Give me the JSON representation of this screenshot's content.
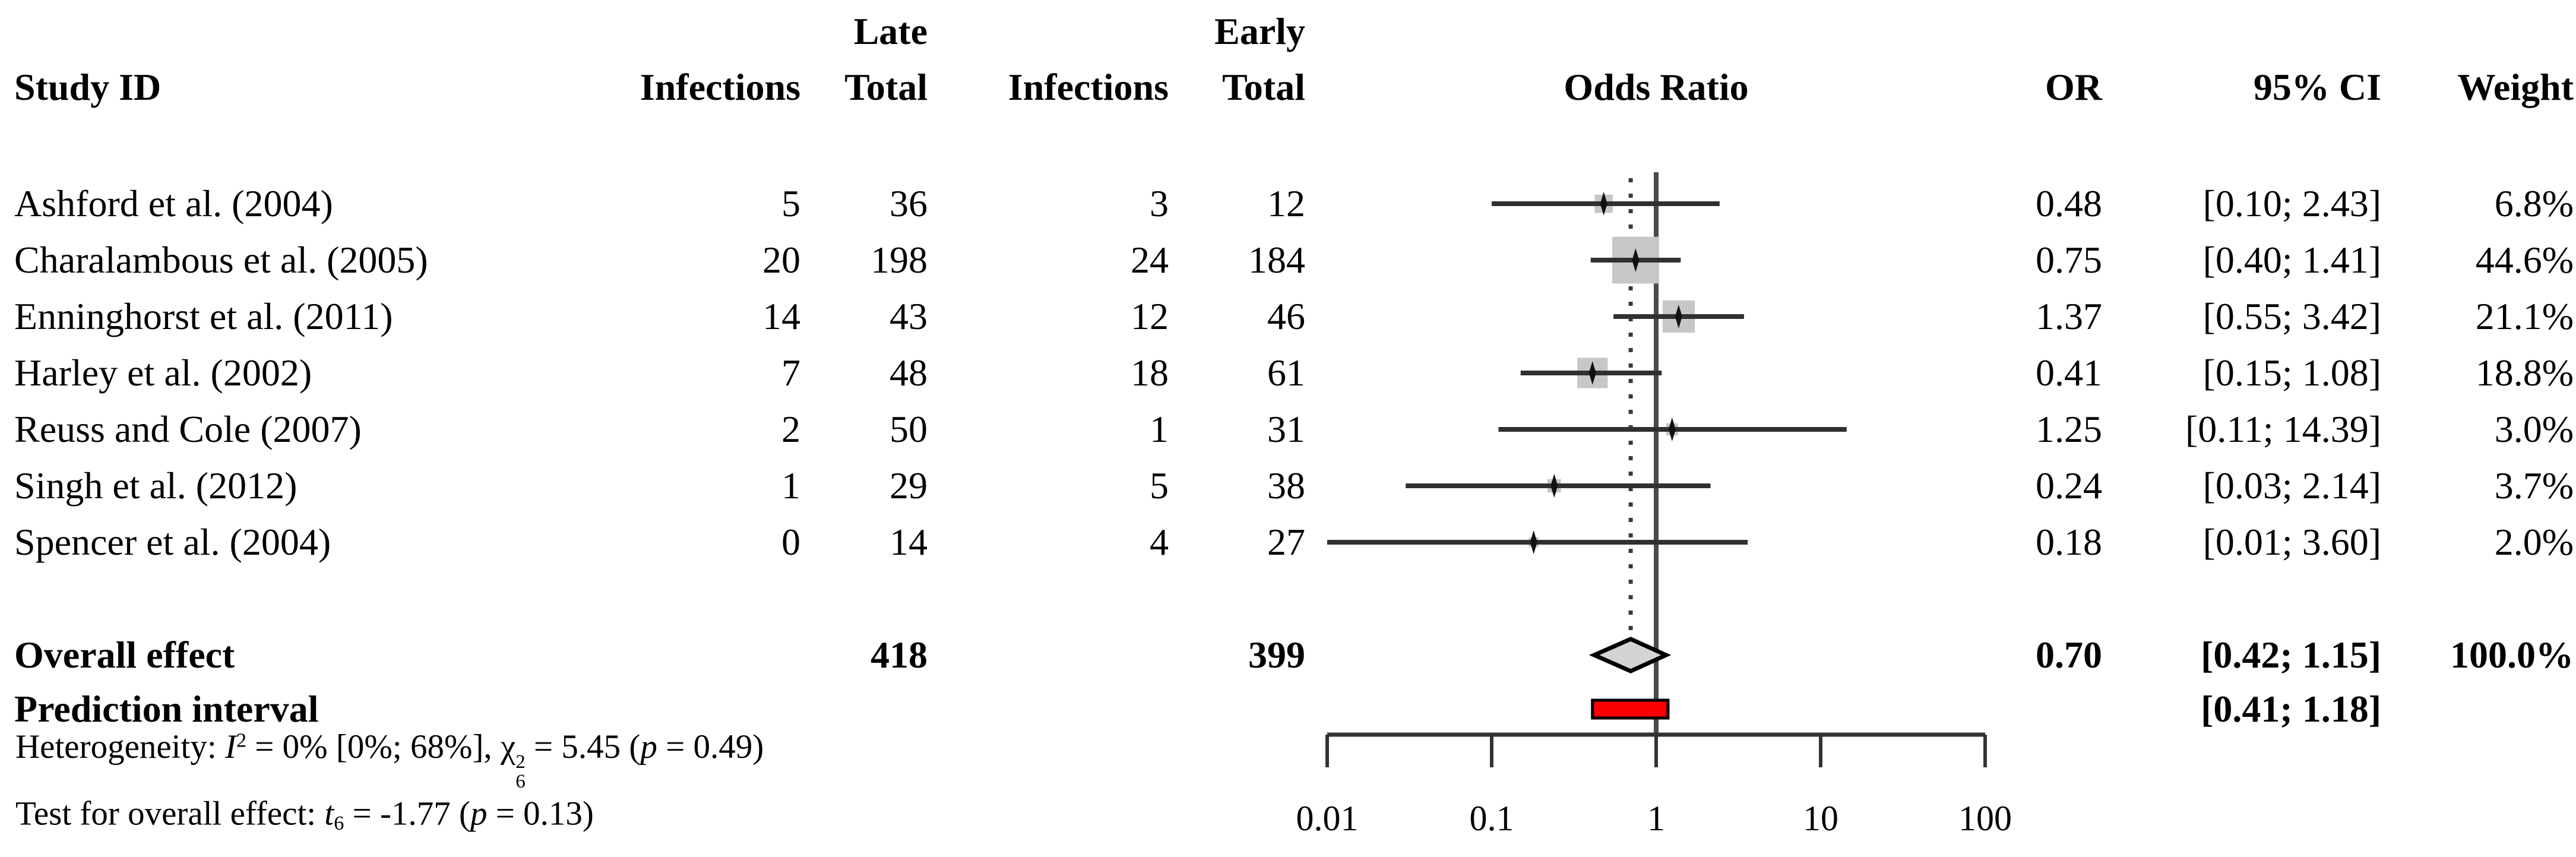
{
  "header": {
    "study": "Study ID",
    "group_late": "Late",
    "group_early": "Early",
    "infections_late": "Infections",
    "total_late": "Total",
    "infections_early": "Infections",
    "total_early": "Total",
    "or_plot": "Odds Ratio",
    "or": "OR",
    "ci": "95% CI",
    "weight": "Weight"
  },
  "chart_data": {
    "type": "forest",
    "effect_measure": "Odds Ratio",
    "x_axis": {
      "scale": "log",
      "range": [
        0.01,
        100
      ],
      "tick_values": [
        0.01,
        0.1,
        1,
        10,
        100
      ],
      "tick_labels": [
        "0.01",
        "0.1",
        "1",
        "10",
        "100"
      ],
      "reference_line": 1,
      "overall_dotted_line": 0.7
    },
    "studies": [
      {
        "id": "Ashford et al. (2004)",
        "late_infections": "5",
        "late_total": "36",
        "early_infections": "3",
        "early_total": "12",
        "or": "0.48",
        "ci": "[0.10; 2.43]",
        "weight": "6.8%",
        "or_value": 0.48,
        "ci_low": 0.1,
        "ci_high": 2.43,
        "weight_value": 6.8
      },
      {
        "id": "Charalambous et al. (2005)",
        "late_infections": "20",
        "late_total": "198",
        "early_infections": "24",
        "early_total": "184",
        "or": "0.75",
        "ci": "[0.40; 1.41]",
        "weight": "44.6%",
        "or_value": 0.75,
        "ci_low": 0.4,
        "ci_high": 1.41,
        "weight_value": 44.6
      },
      {
        "id": "Enninghorst et al. (2011)",
        "late_infections": "14",
        "late_total": "43",
        "early_infections": "12",
        "early_total": "46",
        "or": "1.37",
        "ci": "[0.55; 3.42]",
        "weight": "21.1%",
        "or_value": 1.37,
        "ci_low": 0.55,
        "ci_high": 3.42,
        "weight_value": 21.1
      },
      {
        "id": "Harley et al. (2002)",
        "late_infections": "7",
        "late_total": "48",
        "early_infections": "18",
        "early_total": "61",
        "or": "0.41",
        "ci": "[0.15; 1.08]",
        "weight": "18.8%",
        "or_value": 0.41,
        "ci_low": 0.15,
        "ci_high": 1.08,
        "weight_value": 18.8
      },
      {
        "id": "Reuss and Cole (2007)",
        "late_infections": "2",
        "late_total": "50",
        "early_infections": "1",
        "early_total": "31",
        "or": "1.25",
        "ci": "[0.11; 14.39]",
        "weight": "3.0%",
        "or_value": 1.25,
        "ci_low": 0.11,
        "ci_high": 14.39,
        "weight_value": 3.0
      },
      {
        "id": "Singh et al. (2012)",
        "late_infections": "1",
        "late_total": "29",
        "early_infections": "5",
        "early_total": "38",
        "or": "0.24",
        "ci": "[0.03; 2.14]",
        "weight": "3.7%",
        "or_value": 0.24,
        "ci_low": 0.03,
        "ci_high": 2.14,
        "weight_value": 3.7
      },
      {
        "id": "Spencer et al. (2004)",
        "late_infections": "0",
        "late_total": "14",
        "early_infections": "4",
        "early_total": "27",
        "or": "0.18",
        "ci": "[0.01; 3.60]",
        "weight": "2.0%",
        "or_value": 0.18,
        "ci_low": 0.01,
        "ci_high": 3.6,
        "weight_value": 2.0
      }
    ],
    "overall": {
      "label": "Overall effect",
      "late_total": "418",
      "early_total": "399",
      "or": "0.70",
      "ci": "[0.42; 1.15]",
      "weight": "100.0%",
      "or_value": 0.7,
      "ci_low": 0.42,
      "ci_high": 1.15
    },
    "prediction": {
      "label": "Prediction interval",
      "ci": "[0.41; 1.18]",
      "low": 0.41,
      "high": 1.18
    }
  },
  "heterogeneity": {
    "prefix": "Heterogeneity: ",
    "i_sym": "I",
    "i_sup": "2",
    "seg1": " = 0% [0%; 68%], ",
    "chi_sym": "χ",
    "chi_sup": "2",
    "chi_sub": "6",
    "seg2": " = 5.45 (",
    "p_sym": "p",
    "seg3": " = 0.49)"
  },
  "overall_test": {
    "prefix": "Test for overall effect: ",
    "t_sym": "t",
    "t_sub": "6",
    "seg1": " = -1.77 (",
    "p_sym": "p",
    "seg2": " = 0.13)"
  },
  "colors": {
    "square": "#c7c7c7",
    "ci_line": "#303030",
    "marker": "#111111",
    "ref_line": "#4a4a4a",
    "dotted_line": "#3a3a3a",
    "axis": "#333333",
    "diamond_fill": "#d4d4d4",
    "diamond_border": "#000000",
    "prediction_fill": "#fb0000",
    "prediction_border": "#000000",
    "text": "#000000",
    "background": "#ffffff"
  }
}
